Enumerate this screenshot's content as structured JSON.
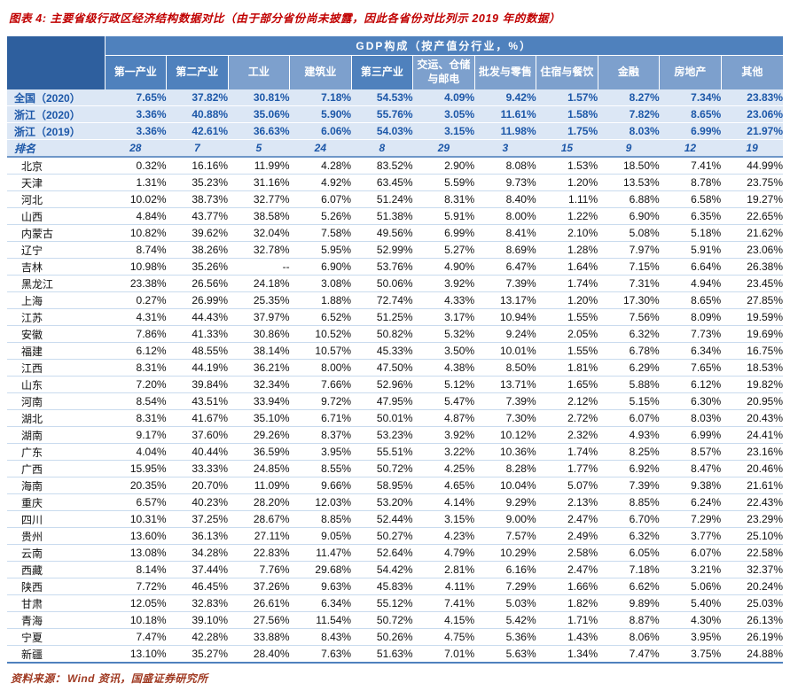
{
  "title": "图表 4: 主要省级行政区经济结构数据对比（由于部分省份尚未披露，因此各省份对比列示 2019 年的数据）",
  "chart_data": {
    "type": "table",
    "group_header": "GDP构成（按产值分行业，%）",
    "columns": [
      {
        "label": "第一产业",
        "type": "main"
      },
      {
        "label": "第二产业",
        "type": "main"
      },
      {
        "label": "工业",
        "type": "sub"
      },
      {
        "label": "建筑业",
        "type": "sub"
      },
      {
        "label": "第三产业",
        "type": "main"
      },
      {
        "label": "交运、仓储与邮电",
        "type": "sub"
      },
      {
        "label": "批发与零售",
        "type": "sub"
      },
      {
        "label": "住宿与餐饮",
        "type": "sub"
      },
      {
        "label": "金融",
        "type": "sub"
      },
      {
        "label": "房地产",
        "type": "sub"
      },
      {
        "label": "其他",
        "type": "sub"
      }
    ],
    "summary_rows": [
      {
        "label": "全国（2020）",
        "values": [
          "7.65%",
          "37.82%",
          "30.81%",
          "7.18%",
          "54.53%",
          "4.09%",
          "9.42%",
          "1.57%",
          "8.27%",
          "7.34%",
          "23.83%"
        ]
      },
      {
        "label": "浙江（2020）",
        "values": [
          "3.36%",
          "40.88%",
          "35.06%",
          "5.90%",
          "55.76%",
          "3.05%",
          "11.61%",
          "1.58%",
          "7.82%",
          "8.65%",
          "23.06%"
        ]
      },
      {
        "label": "浙江（2019）",
        "values": [
          "3.36%",
          "42.61%",
          "36.63%",
          "6.06%",
          "54.03%",
          "3.15%",
          "11.98%",
          "1.75%",
          "8.03%",
          "6.99%",
          "21.97%"
        ]
      }
    ],
    "rank_row": {
      "label": "排名",
      "values": [
        "28",
        "7",
        "5",
        "24",
        "8",
        "29",
        "3",
        "15",
        "9",
        "12",
        "19"
      ]
    },
    "province_rows": [
      {
        "label": "北京",
        "values": [
          "0.32%",
          "16.16%",
          "11.99%",
          "4.28%",
          "83.52%",
          "2.90%",
          "8.08%",
          "1.53%",
          "18.50%",
          "7.41%",
          "44.99%"
        ]
      },
      {
        "label": "天津",
        "values": [
          "1.31%",
          "35.23%",
          "31.16%",
          "4.92%",
          "63.45%",
          "5.59%",
          "9.73%",
          "1.20%",
          "13.53%",
          "8.78%",
          "23.75%"
        ]
      },
      {
        "label": "河北",
        "values": [
          "10.02%",
          "38.73%",
          "32.77%",
          "6.07%",
          "51.24%",
          "8.31%",
          "8.40%",
          "1.11%",
          "6.88%",
          "6.58%",
          "19.27%"
        ]
      },
      {
        "label": "山西",
        "values": [
          "4.84%",
          "43.77%",
          "38.58%",
          "5.26%",
          "51.38%",
          "5.91%",
          "8.00%",
          "1.22%",
          "6.90%",
          "6.35%",
          "22.65%"
        ]
      },
      {
        "label": "内蒙古",
        "values": [
          "10.82%",
          "39.62%",
          "32.04%",
          "7.58%",
          "49.56%",
          "6.99%",
          "8.41%",
          "2.10%",
          "5.08%",
          "5.18%",
          "21.62%"
        ]
      },
      {
        "label": "辽宁",
        "values": [
          "8.74%",
          "38.26%",
          "32.78%",
          "5.95%",
          "52.99%",
          "5.27%",
          "8.69%",
          "1.28%",
          "7.97%",
          "5.91%",
          "23.06%"
        ]
      },
      {
        "label": "吉林",
        "values": [
          "10.98%",
          "35.26%",
          "--",
          "6.90%",
          "53.76%",
          "4.90%",
          "6.47%",
          "1.64%",
          "7.15%",
          "6.64%",
          "26.38%"
        ]
      },
      {
        "label": "黑龙江",
        "values": [
          "23.38%",
          "26.56%",
          "24.18%",
          "3.08%",
          "50.06%",
          "3.92%",
          "7.39%",
          "1.74%",
          "7.31%",
          "4.94%",
          "23.45%"
        ]
      },
      {
        "label": "上海",
        "values": [
          "0.27%",
          "26.99%",
          "25.35%",
          "1.88%",
          "72.74%",
          "4.33%",
          "13.17%",
          "1.20%",
          "17.30%",
          "8.65%",
          "27.85%"
        ]
      },
      {
        "label": "江苏",
        "values": [
          "4.31%",
          "44.43%",
          "37.97%",
          "6.52%",
          "51.25%",
          "3.17%",
          "10.94%",
          "1.55%",
          "7.56%",
          "8.09%",
          "19.59%"
        ]
      },
      {
        "label": "安徽",
        "values": [
          "7.86%",
          "41.33%",
          "30.86%",
          "10.52%",
          "50.82%",
          "5.32%",
          "9.24%",
          "2.05%",
          "6.32%",
          "7.73%",
          "19.69%"
        ]
      },
      {
        "label": "福建",
        "values": [
          "6.12%",
          "48.55%",
          "38.14%",
          "10.57%",
          "45.33%",
          "3.50%",
          "10.01%",
          "1.55%",
          "6.78%",
          "6.34%",
          "16.75%"
        ]
      },
      {
        "label": "江西",
        "values": [
          "8.31%",
          "44.19%",
          "36.21%",
          "8.00%",
          "47.50%",
          "4.38%",
          "8.50%",
          "1.81%",
          "6.29%",
          "7.65%",
          "18.53%"
        ]
      },
      {
        "label": "山东",
        "values": [
          "7.20%",
          "39.84%",
          "32.34%",
          "7.66%",
          "52.96%",
          "5.12%",
          "13.71%",
          "1.65%",
          "5.88%",
          "6.12%",
          "19.82%"
        ]
      },
      {
        "label": "河南",
        "values": [
          "8.54%",
          "43.51%",
          "33.94%",
          "9.72%",
          "47.95%",
          "5.47%",
          "7.39%",
          "2.12%",
          "5.15%",
          "6.30%",
          "20.95%"
        ]
      },
      {
        "label": "湖北",
        "values": [
          "8.31%",
          "41.67%",
          "35.10%",
          "6.71%",
          "50.01%",
          "4.87%",
          "7.30%",
          "2.72%",
          "6.07%",
          "8.03%",
          "20.43%"
        ]
      },
      {
        "label": "湖南",
        "values": [
          "9.17%",
          "37.60%",
          "29.26%",
          "8.37%",
          "53.23%",
          "3.92%",
          "10.12%",
          "2.32%",
          "4.93%",
          "6.99%",
          "24.41%"
        ]
      },
      {
        "label": "广东",
        "values": [
          "4.04%",
          "40.44%",
          "36.59%",
          "3.95%",
          "55.51%",
          "3.22%",
          "10.36%",
          "1.74%",
          "8.25%",
          "8.57%",
          "23.16%"
        ]
      },
      {
        "label": "广西",
        "values": [
          "15.95%",
          "33.33%",
          "24.85%",
          "8.55%",
          "50.72%",
          "4.25%",
          "8.28%",
          "1.77%",
          "6.92%",
          "8.47%",
          "20.46%"
        ]
      },
      {
        "label": "海南",
        "values": [
          "20.35%",
          "20.70%",
          "11.09%",
          "9.66%",
          "58.95%",
          "4.65%",
          "10.04%",
          "5.07%",
          "7.39%",
          "9.38%",
          "21.61%"
        ]
      },
      {
        "label": "重庆",
        "values": [
          "6.57%",
          "40.23%",
          "28.20%",
          "12.03%",
          "53.20%",
          "4.14%",
          "9.29%",
          "2.13%",
          "8.85%",
          "6.24%",
          "22.43%"
        ]
      },
      {
        "label": "四川",
        "values": [
          "10.31%",
          "37.25%",
          "28.67%",
          "8.85%",
          "52.44%",
          "3.15%",
          "9.00%",
          "2.47%",
          "6.70%",
          "7.29%",
          "23.29%"
        ]
      },
      {
        "label": "贵州",
        "values": [
          "13.60%",
          "36.13%",
          "27.11%",
          "9.05%",
          "50.27%",
          "4.23%",
          "7.57%",
          "2.49%",
          "6.32%",
          "3.77%",
          "25.10%"
        ]
      },
      {
        "label": "云南",
        "values": [
          "13.08%",
          "34.28%",
          "22.83%",
          "11.47%",
          "52.64%",
          "4.79%",
          "10.29%",
          "2.58%",
          "6.05%",
          "6.07%",
          "22.58%"
        ]
      },
      {
        "label": "西藏",
        "values": [
          "8.14%",
          "37.44%",
          "7.76%",
          "29.68%",
          "54.42%",
          "2.81%",
          "6.16%",
          "2.47%",
          "7.18%",
          "3.21%",
          "32.37%"
        ]
      },
      {
        "label": "陕西",
        "values": [
          "7.72%",
          "46.45%",
          "37.26%",
          "9.63%",
          "45.83%",
          "4.11%",
          "7.29%",
          "1.66%",
          "6.62%",
          "5.06%",
          "20.24%"
        ]
      },
      {
        "label": "甘肃",
        "values": [
          "12.05%",
          "32.83%",
          "26.61%",
          "6.34%",
          "55.12%",
          "7.41%",
          "5.03%",
          "1.82%",
          "9.89%",
          "5.40%",
          "25.03%"
        ]
      },
      {
        "label": "青海",
        "values": [
          "10.18%",
          "39.10%",
          "27.56%",
          "11.54%",
          "50.72%",
          "4.15%",
          "5.42%",
          "1.71%",
          "8.87%",
          "4.30%",
          "26.13%"
        ]
      },
      {
        "label": "宁夏",
        "values": [
          "7.47%",
          "42.28%",
          "33.88%",
          "8.43%",
          "50.26%",
          "4.75%",
          "5.36%",
          "1.43%",
          "8.06%",
          "3.95%",
          "26.19%"
        ]
      },
      {
        "label": "新疆",
        "values": [
          "13.10%",
          "35.27%",
          "28.40%",
          "7.63%",
          "51.63%",
          "7.01%",
          "5.63%",
          "1.34%",
          "7.47%",
          "3.75%",
          "24.88%"
        ]
      }
    ]
  },
  "footer": {
    "source_label": "资料来源：",
    "source_text": "Wind 资讯，国盛证券研究所"
  }
}
